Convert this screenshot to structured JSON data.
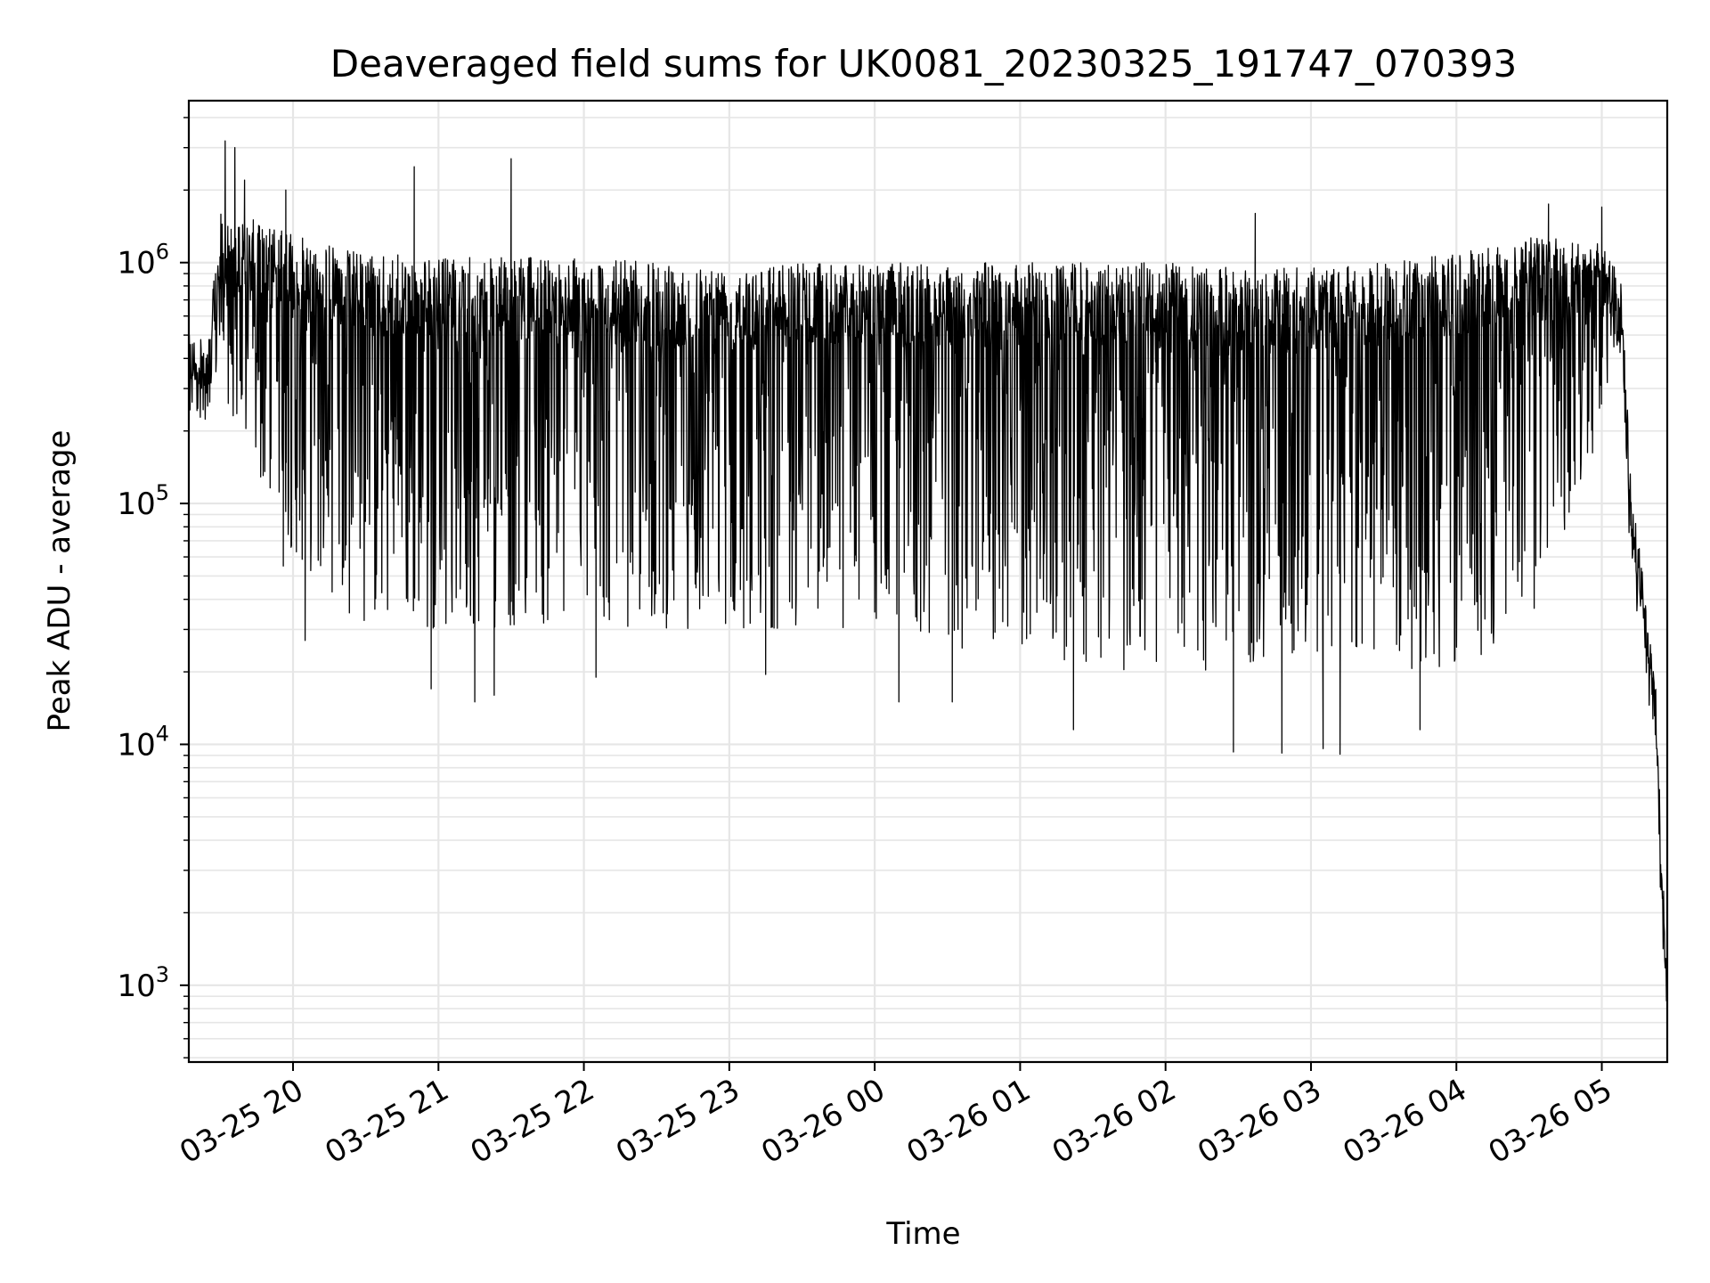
{
  "chart_data": {
    "type": "line",
    "title": "Deaveraged field sums for UK0081_20230325_191747_070393",
    "xlabel": "Time",
    "ylabel": "Peak ADU - average",
    "yscale": "log",
    "ylim": [
      480,
      4700000
    ],
    "xlim": [
      "2023-03-25 19:17",
      "2023-03-26 05:27"
    ],
    "grid": true,
    "line_color": "#000000",
    "grid_color": "#e6e6e6",
    "x_ticks": [
      {
        "value": "2023-03-25 20:00",
        "label": "03-25 20"
      },
      {
        "value": "2023-03-25 21:00",
        "label": "03-25 21"
      },
      {
        "value": "2023-03-25 22:00",
        "label": "03-25 22"
      },
      {
        "value": "2023-03-25 23:00",
        "label": "03-25 23"
      },
      {
        "value": "2023-03-26 00:00",
        "label": "03-26 00"
      },
      {
        "value": "2023-03-26 01:00",
        "label": "03-26 01"
      },
      {
        "value": "2023-03-26 02:00",
        "label": "03-26 02"
      },
      {
        "value": "2023-03-26 03:00",
        "label": "03-26 03"
      },
      {
        "value": "2023-03-26 04:00",
        "label": "03-26 04"
      },
      {
        "value": "2023-03-26 05:00",
        "label": "03-26 05"
      }
    ],
    "y_ticks": [
      {
        "value": 1000,
        "base": "10",
        "exp": "3"
      },
      {
        "value": 10000,
        "base": "10",
        "exp": "4"
      },
      {
        "value": 100000,
        "base": "10",
        "exp": "5"
      },
      {
        "value": 1000000,
        "base": "10",
        "exp": "6"
      }
    ],
    "envelope": {
      "x": [
        "2023-03-25 19:17",
        "2023-03-25 19:25",
        "2023-03-25 19:30",
        "2023-03-25 19:45",
        "2023-03-25 20:00",
        "2023-03-25 20:30",
        "2023-03-25 21:00",
        "2023-03-25 21:30",
        "2023-03-25 22:00",
        "2023-03-25 22:30",
        "2023-03-25 23:00",
        "2023-03-25 23:30",
        "2023-03-26 00:00",
        "2023-03-26 00:30",
        "2023-03-26 01:00",
        "2023-03-26 01:30",
        "2023-03-26 02:00",
        "2023-03-26 02:30",
        "2023-03-26 03:00",
        "2023-03-26 03:30",
        "2023-03-26 04:00",
        "2023-03-26 04:30",
        "2023-03-26 05:00",
        "2023-03-26 05:06",
        "2023-03-26 05:08",
        "2023-03-26 05:12",
        "2023-03-26 05:17",
        "2023-03-26 05:22",
        "2023-03-26 05:27"
      ],
      "upper": [
        500000,
        480000,
        1600000,
        1500000,
        1300000,
        1100000,
        1050000,
        1050000,
        1050000,
        1000000,
        1000000,
        1000000,
        1000000,
        1000000,
        1000000,
        1000000,
        1000000,
        950000,
        950000,
        1000000,
        1100000,
        1300000,
        1200000,
        950000,
        900000,
        120000,
        50000,
        20000,
        1000
      ],
      "lower": [
        300000,
        300000,
        300000,
        120000,
        60000,
        30000,
        30000,
        30000,
        30000,
        30000,
        30000,
        30000,
        30000,
        25000,
        25000,
        20000,
        20000,
        20000,
        20000,
        20000,
        20000,
        30000,
        200000,
        500000,
        400000,
        50000,
        30000,
        10000,
        900
      ]
    },
    "extremes": [
      {
        "x": "2023-03-25 19:32",
        "y": 3200000
      },
      {
        "x": "2023-03-25 19:36",
        "y": 3000000
      },
      {
        "x": "2023-03-25 19:40",
        "y": 2200000
      },
      {
        "x": "2023-03-25 19:57",
        "y": 2000000
      },
      {
        "x": "2023-03-25 20:50",
        "y": 2500000
      },
      {
        "x": "2023-03-25 21:30",
        "y": 2700000
      },
      {
        "x": "2023-03-26 02:37",
        "y": 1600000
      },
      {
        "x": "2023-03-26 04:38",
        "y": 1750000
      },
      {
        "x": "2023-03-26 05:00",
        "y": 1700000
      },
      {
        "x": "2023-03-25 19:56",
        "y": 55000
      },
      {
        "x": "2023-03-25 20:05",
        "y": 27000
      },
      {
        "x": "2023-03-25 20:57",
        "y": 17000
      },
      {
        "x": "2023-03-25 21:15",
        "y": 15000
      },
      {
        "x": "2023-03-25 21:23",
        "y": 16000
      },
      {
        "x": "2023-03-25 22:05",
        "y": 19000
      },
      {
        "x": "2023-03-25 23:15",
        "y": 19500
      },
      {
        "x": "2023-03-26 00:10",
        "y": 15000
      },
      {
        "x": "2023-03-26 00:32",
        "y": 15000
      },
      {
        "x": "2023-03-26 01:22",
        "y": 11500
      },
      {
        "x": "2023-03-26 02:28",
        "y": 9300
      },
      {
        "x": "2023-03-26 02:48",
        "y": 9200
      },
      {
        "x": "2023-03-26 03:05",
        "y": 9600
      },
      {
        "x": "2023-03-26 03:12",
        "y": 9100
      },
      {
        "x": "2023-03-26 03:45",
        "y": 11500
      }
    ]
  }
}
